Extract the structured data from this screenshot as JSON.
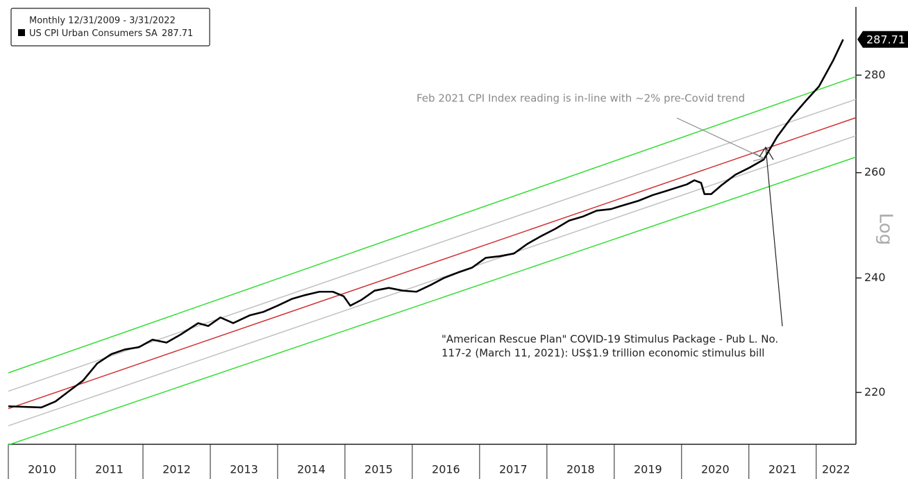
{
  "chart_data": {
    "type": "line",
    "subtitle": "Monthly 12/31/2009 - 3/31/2022",
    "y_axis_label": "Log",
    "log_scale": true,
    "xlim": [
      2010,
      2022.59
    ],
    "ylim": [
      211.5,
      294.9
    ],
    "yticks": [
      220,
      240,
      260,
      280
    ],
    "xticks": [
      {
        "value": 2010,
        "label": "2010"
      },
      {
        "value": 2011,
        "label": "2011"
      },
      {
        "value": 2012,
        "label": "2012"
      },
      {
        "value": 2013,
        "label": "2013"
      },
      {
        "value": 2014,
        "label": "2014"
      },
      {
        "value": 2015,
        "label": "2015"
      },
      {
        "value": 2016,
        "label": "2016"
      },
      {
        "value": 2017,
        "label": "2017"
      },
      {
        "value": 2018,
        "label": "2018"
      },
      {
        "value": 2019,
        "label": "2019"
      },
      {
        "value": 2020,
        "label": "2020"
      },
      {
        "value": 2021,
        "label": "2021"
      },
      {
        "value": 2022,
        "label": "2022"
      }
    ],
    "series": [
      {
        "name": "US CPI Urban Consumers SA",
        "color": "#000000",
        "x": [
          2010.0,
          2010.49,
          2010.7,
          2010.91,
          2011.11,
          2011.32,
          2011.53,
          2011.73,
          2011.94,
          2012.14,
          2012.35,
          2012.56,
          2012.82,
          2012.97,
          2013.15,
          2013.34,
          2013.59,
          2013.79,
          2014.0,
          2014.21,
          2014.41,
          2014.62,
          2014.82,
          2014.98,
          2015.08,
          2015.24,
          2015.44,
          2015.65,
          2015.86,
          2016.06,
          2016.27,
          2016.47,
          2016.68,
          2016.89,
          2017.09,
          2017.3,
          2017.51,
          2017.71,
          2017.92,
          2018.12,
          2018.33,
          2018.54,
          2018.74,
          2018.95,
          2019.15,
          2019.36,
          2019.57,
          2019.77,
          2020.08,
          2020.19,
          2020.29,
          2020.34,
          2020.44,
          2020.6,
          2020.8,
          2021.01,
          2021.22,
          2021.42,
          2021.63,
          2021.84,
          2022.04,
          2022.25,
          2022.4
        ],
        "values": [
          217.7,
          217.5,
          218.5,
          220.3,
          222.0,
          224.9,
          226.5,
          227.3,
          227.7,
          229.0,
          228.5,
          229.9,
          231.9,
          231.4,
          232.9,
          231.9,
          233.3,
          233.9,
          235.0,
          236.2,
          236.9,
          237.5,
          237.5,
          236.7,
          235.0,
          236.0,
          237.7,
          238.2,
          237.7,
          237.5,
          238.7,
          240.0,
          241.0,
          241.9,
          243.7,
          244.0,
          244.5,
          246.3,
          247.8,
          249.1,
          250.7,
          251.5,
          252.6,
          252.9,
          253.7,
          254.5,
          255.6,
          256.4,
          257.7,
          258.5,
          258.0,
          255.8,
          255.8,
          257.6,
          259.6,
          261.0,
          262.6,
          267.2,
          271.1,
          274.5,
          277.6,
          283.1,
          287.71
        ]
      }
    ],
    "trend_lines": [
      {
        "color": "#33dd33",
        "x": [
          2010,
          2022.59
        ],
        "values": [
          223.3,
          279.7
        ]
      },
      {
        "color": "#c0c0c0",
        "x": [
          2010,
          2022.59
        ],
        "values": [
          220.2,
          274.9
        ]
      },
      {
        "color": "#d03030",
        "x": [
          2010,
          2022.59
        ],
        "values": [
          217.3,
          271.1
        ]
      },
      {
        "color": "#c0c0c0",
        "x": [
          2010,
          2022.59
        ],
        "values": [
          214.5,
          267.4
        ]
      },
      {
        "color": "#33dd33",
        "x": [
          2010,
          2022.59
        ],
        "values": [
          211.4,
          263.1
        ]
      }
    ],
    "annotations": [
      [
        "Feb 2021 CPI Index reading is in-line with ~2% pre-Covid trend"
      ],
      [
        "\"American Rescue Plan\" COVID-19 Stimulus Package - Pub L. No.",
        "117-2 (March 11, 2021): US$1.9 trillion economic stimulus bill"
      ]
    ]
  }
}
